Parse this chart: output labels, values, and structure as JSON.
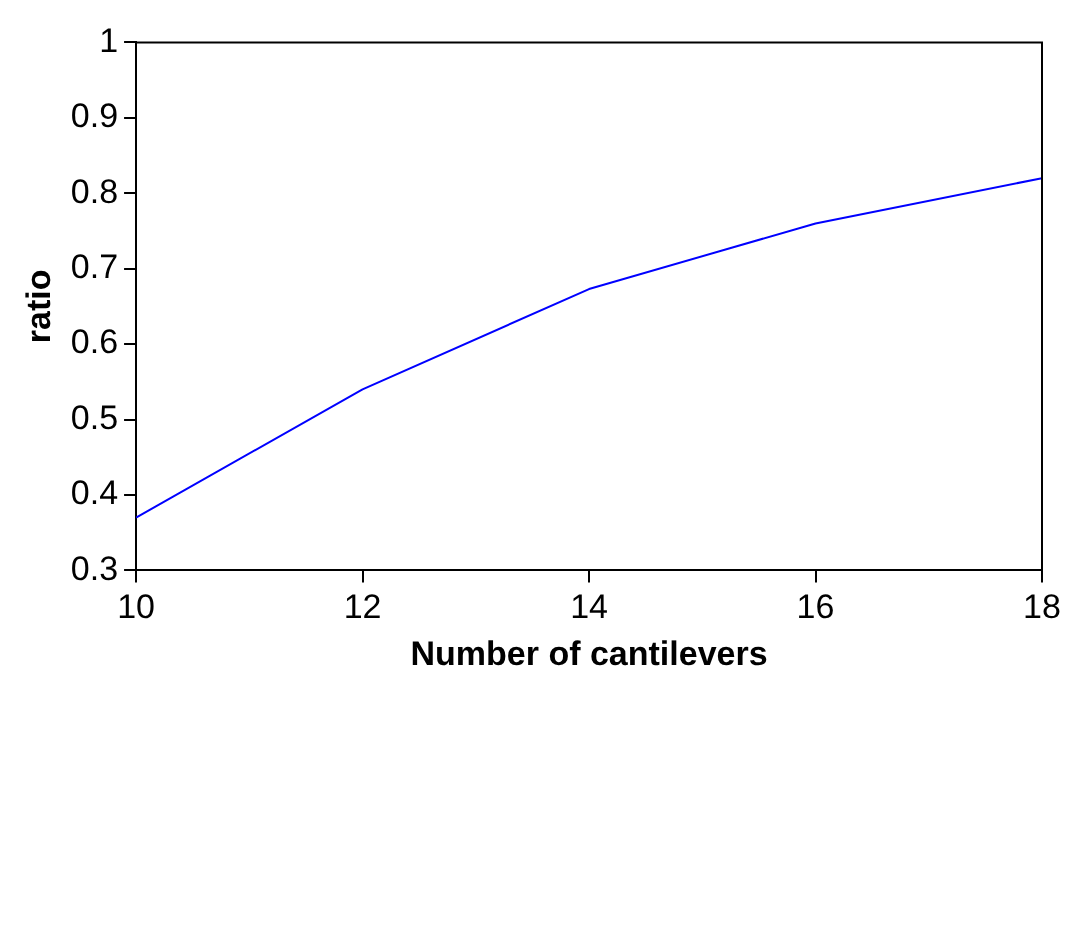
{
  "chart_data": {
    "type": "line",
    "xlabel": "Number of cantilevers",
    "ylabel": "ratio",
    "x": [
      10,
      12,
      14,
      16,
      18
    ],
    "series": [
      {
        "color": "#0000ff",
        "values": [
          0.37,
          0.54,
          0.673,
          0.76,
          0.82
        ]
      }
    ],
    "xlim": [
      10,
      18
    ],
    "xticks": [
      10,
      12,
      14,
      16,
      18
    ],
    "ylim": [
      0.3,
      1
    ],
    "yticks": [
      0.3,
      0.4,
      0.5,
      0.6,
      0.7,
      0.8,
      0.9,
      1
    ],
    "grid": false,
    "legend": false,
    "marker": "none",
    "line_style": "solid"
  }
}
